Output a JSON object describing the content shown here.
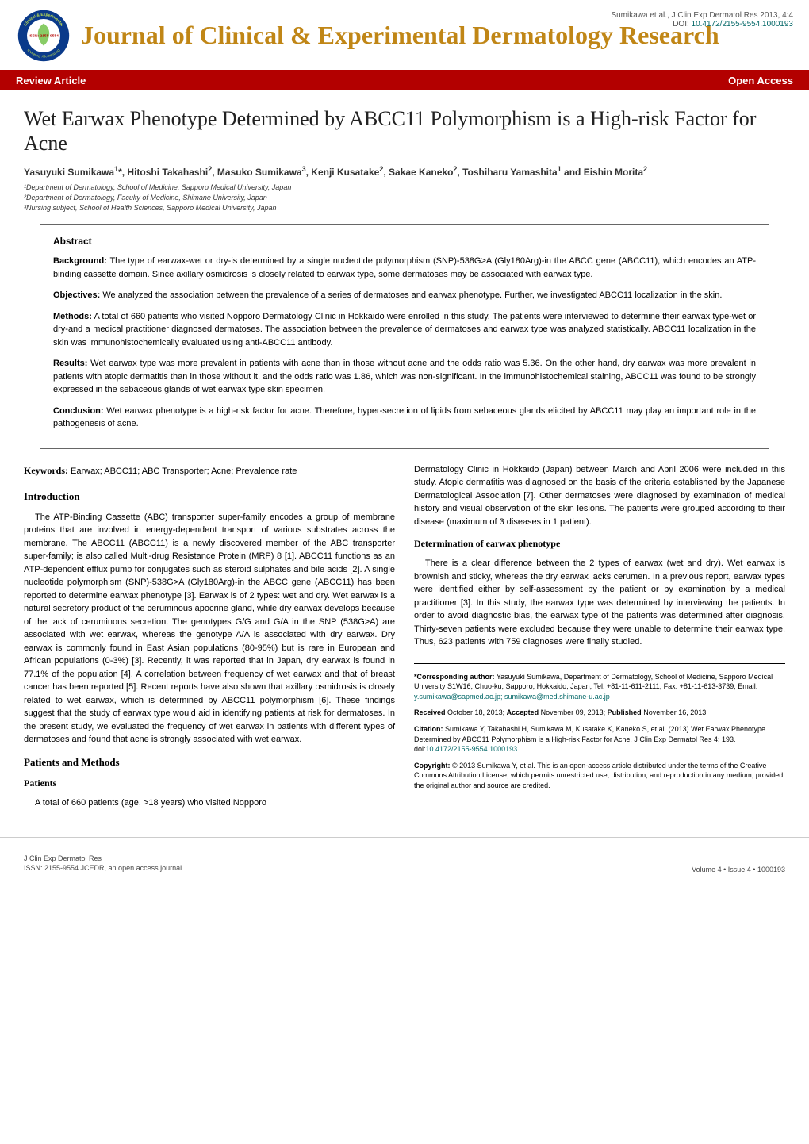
{
  "header": {
    "journal_title": "Journal of Clinical & Experimental Dermatology Research",
    "citation_line": "Sumikawa et al., J Clin Exp Dermatol Res 2013, 4:4",
    "doi_label": "DOI:",
    "doi": "10.4172/2155-9554.1000193",
    "logo": {
      "ring_color": "#0a3a8a",
      "inner_bg": "#ffffff",
      "text_top": "Clinical & Experimental",
      "text_bottom": "Dermatology Research",
      "center_text": "ISSN: 2155-9554",
      "ring_text_color": "#c0e050",
      "center_text_color": "#b30000"
    }
  },
  "redbar": {
    "left": "Review Article",
    "right": "Open Access",
    "bg_color": "#b30000",
    "text_color": "#ffffff"
  },
  "article": {
    "title": "Wet Earwax Phenotype Determined by ABCC11 Polymorphism is a High-risk Factor for Acne",
    "authors_html": "Yasuyuki Sumikawa<sup>1</sup>*, Hitoshi Takahashi<sup>2</sup>, Masuko Sumikawa<sup>3</sup>, Kenji Kusatake<sup>2</sup>, Sakae Kaneko<sup>2</sup>, Toshiharu Yamashita<sup>1</sup> and Eishin Morita<sup>2</sup>",
    "affiliations": [
      "¹Department of Dermatology, School of Medicine, Sapporo Medical University, Japan",
      "²Department of Dermatology, Faculty of Medicine, Shimane University, Japan",
      "³Nursing subject, School of Health Sciences, Sapporo Medical University, Japan"
    ]
  },
  "abstract": {
    "heading": "Abstract",
    "paras": [
      {
        "label": "Background:",
        "text": " The type of earwax-wet or dry-is determined by a single nucleotide polymorphism (SNP)-538G>A (Gly180Arg)-in the ABCC gene (ABCC11), which encodes an ATP-binding cassette domain. Since axillary osmidrosis is closely related to earwax type, some dermatoses may be associated with earwax type."
      },
      {
        "label": "Objectives:",
        "text": " We analyzed the association between the prevalence of a series of dermatoses and earwax phenotype. Further, we investigated ABCC11 localization in the skin."
      },
      {
        "label": "Methods:",
        "text": " A total of 660 patients who visited Nopporo Dermatology Clinic in Hokkaido were enrolled in this study. The patients were interviewed to determine their earwax type-wet or dry-and a medical practitioner diagnosed dermatoses. The association between the prevalence of dermatoses and earwax type was analyzed statistically. ABCC11 localization in the skin was immunohistochemically evaluated using anti-ABCC11 antibody."
      },
      {
        "label": "Results:",
        "text": " Wet earwax type was more prevalent in patients with acne than in those without acne and the odds ratio was 5.36. On the other hand, dry earwax was more prevalent in patients with atopic dermatitis than in those without it, and the odds ratio was 1.86, which was non-significant. In the immunohistochemical staining, ABCC11 was found to be strongly expressed in the sebaceous glands of wet earwax type skin specimen."
      },
      {
        "label": "Conclusion:",
        "text": " Wet earwax phenotype is a high-risk factor for acne. Therefore, hyper-secretion of lipids from sebaceous glands elicited by ABCC11 may play an important role in the pathogenesis of acne."
      }
    ]
  },
  "body": {
    "keywords_label": "Keywords:",
    "keywords_text": " Earwax; ABCC11; ABC Transporter; Acne; Prevalence rate",
    "intro_h": "Introduction",
    "intro_p": "The ATP-Binding Cassette (ABC) transporter super-family encodes a group of membrane proteins that are involved in energy-dependent transport of various substrates across the membrane. The ABCC11 (ABCC11) is a newly discovered member of the ABC transporter super-family; is also called Multi-drug Resistance Protein (MRP) 8 [1]. ABCC11 functions as an ATP-dependent efflux pump for conjugates such as steroid sulphates and bile acids [2]. A single nucleotide polymorphism (SNP)-538G>A (Gly180Arg)-in the ABCC gene (ABCC11) has been reported to determine earwax phenotype [3]. Earwax is of 2 types: wet and dry. Wet earwax is a natural secretory product of the ceruminous apocrine gland, while dry earwax develops because of the lack of ceruminous secretion. The genotypes G/G and G/A in the SNP (538G>A) are associated with wet earwax, whereas the genotype A/A is associated with dry earwax. Dry earwax is commonly found in East Asian populations (80-95%) but is rare in European and African populations (0-3%) [3]. Recently, it was reported that in Japan, dry earwax is found in 77.1% of the population [4]. A correlation between frequency of wet earwax and that of breast cancer has been reported [5]. Recent reports have also shown that axillary osmidrosis is closely related to wet earwax, which is determined by ABCC11 polymorphism [6]. These findings suggest that the study of earwax type would aid in identifying patients at risk for dermatoses. In the present study, we evaluated the frequency of wet earwax in patients with different types of dermatoses and found that acne is strongly associated with wet earwax.",
    "pm_h": "Patients and Methods",
    "patients_h": "Patients",
    "patients_p1": "A total of 660 patients (age, >18 years) who visited Nopporo",
    "patients_p2": "Dermatology Clinic in Hokkaido (Japan) between March and April 2006 were included in this study. Atopic dermatitis was diagnosed on the basis of the criteria established by the Japanese Dermatological Association [7]. Other dermatoses were diagnosed by examination of medical history and visual observation of the skin lesions. The patients were grouped according to their disease (maximum of 3 diseases in 1 patient).",
    "det_h": "Determination of earwax phenotype",
    "det_p": "There is a clear difference between the 2 types of earwax (wet and dry). Wet earwax is brownish and sticky, whereas the dry earwax lacks cerumen. In a previous report, earwax types were identified either by self-assessment by the patient or by examination by a medical practitioner [3]. In this study, the earwax type was determined by interviewing the patients. In order to avoid diagnostic bias, the earwax type of the patients was determined after diagnosis. Thirty-seven patients were excluded because they were unable to determine their earwax type. Thus, 623 patients with 759 diagnoses were finally studied."
  },
  "corr": {
    "corresponding_label": "*Corresponding author:",
    "corresponding_text": " Yasuyuki Sumikawa, Department of Dermatology, School of Medicine, Sapporo Medical University S1W16, Chuo-ku, Sapporo, Hokkaido, Japan, Tel: +81-11-611-2111; Fax: +81-11-613-3739; Email: ",
    "email1": "y.sumikawa@sapmed.ac.jp;",
    "email2": "sumikawa@med.shimane-u.ac.jp",
    "received": "Received October 18, 2013; Accepted November 09, 2013; Published November 16, 2013",
    "citation_label": "Citation:",
    "citation_text": " Sumikawa Y, Takahashi H, Sumikawa M, Kusatake K, Kaneko S, et al. (2013) Wet Earwax Phenotype Determined by ABCC11 Polymorphism is a High-risk Factor for Acne. J Clin Exp Dermatol Res 4: 193. doi:",
    "citation_doi": "10.4172/2155-9554.1000193",
    "copyright_label": "Copyright:",
    "copyright_text": " © 2013 Sumikawa Y, et al. This is an open-access article distributed under the terms of the Creative Commons Attribution License, which permits unrestricted use, distribution, and reproduction in any medium, provided the original author and source are credited."
  },
  "footer": {
    "left1": "J Clin Exp Dermatol Res",
    "left2": "ISSN: 2155-9554 JCEDR, an open access journal",
    "right": "Volume 4 • Issue 4 • 1000193"
  },
  "colors": {
    "journal_title": "#c08616",
    "red_bar": "#b30000",
    "link": "#066666"
  }
}
